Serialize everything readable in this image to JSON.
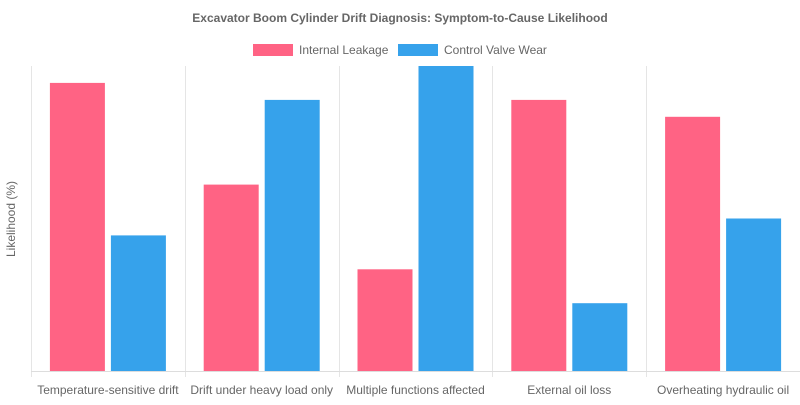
{
  "chart_data": {
    "type": "bar",
    "title": "Excavator Boom Cylinder Drift Diagnosis: Symptom-to-Cause Likelihood",
    "xlabel": "",
    "ylabel": "Likelihood (%)",
    "categories": [
      "Temperature-sensitive drift",
      "Drift under heavy load only",
      "Multiple functions affected",
      "External oil loss",
      "Overheating hydraulic oil"
    ],
    "series": [
      {
        "name": "Internal Leakage",
        "color": "#ff6384",
        "values": [
          85,
          55,
          30,
          80,
          75
        ]
      },
      {
        "name": "Control Valve Wear",
        "color": "#36a2eb",
        "values": [
          40,
          80,
          90,
          20,
          45
        ]
      }
    ],
    "ylim": [
      0,
      90
    ],
    "grid": true,
    "legend_position": "top",
    "y_ticks_visible": false
  }
}
